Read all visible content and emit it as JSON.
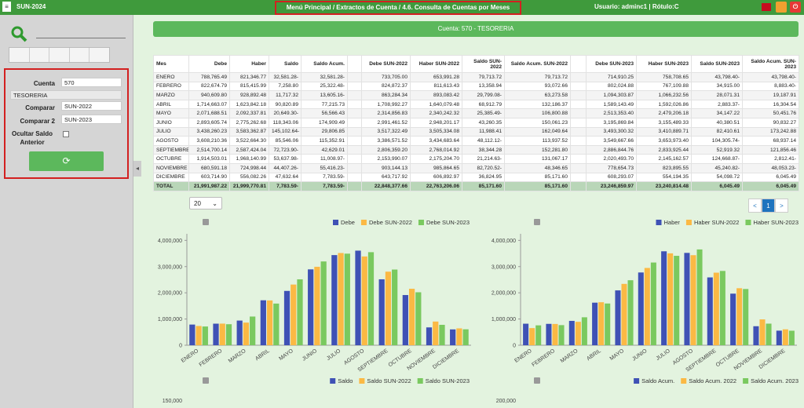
{
  "header": {
    "app": "SUN-2024",
    "breadcrumbs": [
      "Menú Principal",
      "Extractos de Cuenta",
      "4.6. Consulta de Cuentas por Meses"
    ],
    "user": "Usuario: adminc1 | Rótulo:C"
  },
  "sidebar": {
    "cuenta_label": "Cuenta",
    "cuenta": "570",
    "cuenta_name": "TESORERIA",
    "comparar_label": "Comparar",
    "comparar": "SUN-2022",
    "comparar2_label": "Comparar 2",
    "comparar2": "SUN-2023",
    "ocultar_label": "Ocultar Saldo Anterior"
  },
  "banner": "Cuenta: 570 - TESORERIA",
  "table": {
    "columns": [
      "Mes",
      "Debe",
      "Haber",
      "Saldo",
      "Saldo Acum.",
      "Debe SUN-2022",
      "Haber SUN-2022",
      "Saldo SUN-2022",
      "Saldo Acum. SUN-2022",
      "Debe SUN-2023",
      "Haber SUN-2023",
      "Saldo SUN-2023",
      "Saldo Acum. SUN-2023"
    ],
    "rows": [
      [
        "ENERO",
        "788,765.49",
        "821,346.77",
        "32,581.28-",
        "32,581.28-",
        "733,705.00",
        "653,991.28",
        "79,713.72",
        "79,713.72",
        "714,910.25",
        "758,708.65",
        "43,798.40-",
        "43,798.40-"
      ],
      [
        "FEBRERO",
        "822,674.79",
        "815,415.99",
        "7,258.80",
        "25,322.48-",
        "824,872.37",
        "811,613.43",
        "13,358.94",
        "93,072.66",
        "802,024.88",
        "767,109.88",
        "34,915.00",
        "8,883.40-"
      ],
      [
        "MARZO",
        "940,609.80",
        "928,892.48",
        "11,717.32",
        "13,605.16-",
        "863,284.34",
        "893,083.42",
        "29,799.08-",
        "63,273.58",
        "1,094,303.87",
        "1,066,232.56",
        "28,071.31",
        "19,187.91"
      ],
      [
        "ABRIL",
        "1,714,663.07",
        "1,623,842.18",
        "90,820.89",
        "77,215.73",
        "1,708,992.27",
        "1,640,079.48",
        "68,912.79",
        "132,186.37",
        "1,589,143.49",
        "1,592,026.86",
        "2,883.37-",
        "16,304.54"
      ],
      [
        "MAYO",
        "2,071,688.51",
        "2,092,337.81",
        "20,649.30-",
        "56,566.43",
        "2,314,856.83",
        "2,340,242.32",
        "25,385.49-",
        "106,800.88",
        "2,513,353.40",
        "2,479,206.18",
        "34,147.22",
        "50,451.76"
      ],
      [
        "JUNIO",
        "2,893,605.74",
        "2,775,262.68",
        "118,343.06",
        "174,909.49",
        "2,991,461.52",
        "2,948,201.17",
        "43,260.35",
        "150,061.23",
        "3,195,869.84",
        "3,155,489.33",
        "40,380.51",
        "90,832.27"
      ],
      [
        "JULIO",
        "3,438,260.23",
        "3,583,362.87",
        "145,102.64-",
        "29,806.85",
        "3,517,322.49",
        "3,505,334.08",
        "11,988.41",
        "162,049.64",
        "3,493,300.32",
        "3,410,889.71",
        "82,410.61",
        "173,242.88"
      ],
      [
        "AGOSTO",
        "3,608,210.36",
        "3,522,664.30",
        "85,546.06",
        "115,352.91",
        "3,386,571.52",
        "3,434,683.64",
        "48,112.12-",
        "113,937.52",
        "3,549,667.66",
        "3,653,973.40",
        "104,305.74-",
        "68,937.14"
      ],
      [
        "SEPTIEMBRE",
        "2,514,700.14",
        "2,587,424.04",
        "72,723.90-",
        "42,629.01",
        "2,806,359.20",
        "2,768,014.92",
        "38,344.28",
        "152,281.80",
        "2,886,844.76",
        "2,833,925.44",
        "52,919.32",
        "121,856.46"
      ],
      [
        "OCTUBRE",
        "1,914,503.01",
        "1,968,140.99",
        "53,637.98-",
        "11,008.97-",
        "2,153,990.07",
        "2,175,204.70",
        "21,214.63-",
        "131,067.17",
        "2,020,493.70",
        "2,145,162.57",
        "124,668.87-",
        "2,812.41-"
      ],
      [
        "NOVIEMBRE",
        "680,591.18",
        "724,998.44",
        "44,407.26-",
        "55,416.23-",
        "903,144.13",
        "985,864.65",
        "82,720.52-",
        "48,346.65",
        "778,654.73",
        "823,895.55",
        "45,240.82-",
        "48,053.23-"
      ],
      [
        "DICIEMBRE",
        "603,714.90",
        "556,082.26",
        "47,632.64",
        "7,783.59-",
        "643,717.92",
        "606,892.97",
        "36,824.95",
        "85,171.60",
        "608,293.07",
        "554,194.35",
        "54,098.72",
        "6,045.49"
      ],
      [
        "TOTAL",
        "21,991,987.22",
        "21,999,770.81",
        "7,783.59-",
        "7,783.59-",
        "22,848,377.66",
        "22,763,206.06",
        "85,171.60",
        "85,171.60",
        "23,246,859.97",
        "23,240,814.48",
        "6,045.49",
        "6,045.49"
      ]
    ]
  },
  "page_size": "20",
  "pagination": [
    "<",
    "1",
    ">"
  ],
  "chart_data": [
    {
      "type": "bar",
      "categories": [
        "ENERO",
        "FEBRERO",
        "MARZO",
        "ABRIL",
        "MAYO",
        "JUNIO",
        "JULIO",
        "AGOSTO",
        "SEPTIEMBRE",
        "OCTUBRE",
        "NOVIEMBRE",
        "DICIEMBRE"
      ],
      "series": [
        {
          "name": "Debe",
          "color": "#3f51b5",
          "values": [
            788765.49,
            822674.79,
            940609.8,
            1714663.07,
            2071688.51,
            2893605.74,
            3438260.23,
            3608210.36,
            2514700.14,
            1914503.01,
            680591.18,
            603714.9
          ]
        },
        {
          "name": "Debe SUN-2022",
          "color": "#fbb944",
          "values": [
            733705.0,
            824872.37,
            863284.34,
            1708992.27,
            2314856.83,
            2991461.52,
            3517322.49,
            3386571.52,
            2806359.2,
            2153990.07,
            903144.13,
            643717.92
          ]
        },
        {
          "name": "Debe SUN-2023",
          "color": "#7ac95f",
          "values": [
            714910.25,
            802024.88,
            1094303.87,
            1589143.49,
            2513353.4,
            3195869.84,
            3493300.32,
            3549667.66,
            2886844.76,
            2020493.7,
            778654.73,
            608293.07
          ]
        }
      ],
      "ylim": [
        0,
        4250000
      ],
      "yticks": [
        0,
        {
          "value": 1000000,
          "label": "1,000,000"
        },
        {
          "value": 2000000,
          "label": "2,000,000"
        },
        {
          "value": 3000000,
          "label": "3,000,000"
        },
        {
          "value": 4000000,
          "label": "4,000,000"
        }
      ],
      "grid": false
    },
    {
      "type": "bar",
      "categories": [
        "ENERO",
        "FEBRERO",
        "MARZO",
        "ABRIL",
        "MAYO",
        "JUNIO",
        "JULIO",
        "AGOSTO",
        "SEPTIEMBRE",
        "OCTUBRE",
        "NOVIEMBRE",
        "DICIEMBRE"
      ],
      "series": [
        {
          "name": "Haber",
          "color": "#3f51b5",
          "values": [
            821346.77,
            815415.99,
            928892.48,
            1623842.18,
            2092337.81,
            2775262.68,
            3583362.87,
            3522664.3,
            2587424.04,
            1968140.99,
            724998.44,
            556082.26
          ]
        },
        {
          "name": "Haber SUN-2022",
          "color": "#fbb944",
          "values": [
            653991.28,
            811613.43,
            893083.42,
            1640079.48,
            2340242.32,
            2948201.17,
            3505334.08,
            3434683.64,
            2768014.92,
            2175204.7,
            985864.65,
            606892.97
          ]
        },
        {
          "name": "Haber SUN-2023",
          "color": "#7ac95f",
          "values": [
            758708.65,
            767109.88,
            1066232.56,
            1592026.86,
            2479206.18,
            3155489.33,
            3410889.71,
            3653973.4,
            2833925.44,
            2145162.57,
            823895.55,
            554194.35
          ]
        }
      ],
      "ylim": [
        0,
        4250000
      ],
      "yticks": [
        0,
        {
          "value": 1000000,
          "label": "1,000,000"
        },
        {
          "value": 2000000,
          "label": "2,000,000"
        },
        {
          "value": 3000000,
          "label": "3,000,000"
        },
        {
          "value": 4000000,
          "label": "4,000,000"
        }
      ],
      "grid": false
    },
    {
      "type": "bar",
      "series": [
        {
          "name": "Saldo",
          "color": "#3f51b5"
        },
        {
          "name": "Saldo SUN-2022",
          "color": "#fbb944"
        },
        {
          "name": "Saldo SUN-2023",
          "color": "#7ac95f"
        }
      ],
      "yticks": [
        {
          "value": 150000,
          "label": "150,000"
        }
      ]
    },
    {
      "type": "bar",
      "series": [
        {
          "name": "Saldo Acum.",
          "color": "#3f51b5"
        },
        {
          "name": "Saldo Acum. 2022",
          "color": "#fbb944"
        },
        {
          "name": "Saldo Acum. 2023",
          "color": "#7ac95f"
        }
      ],
      "yticks": [
        {
          "value": 200000,
          "label": "200,000"
        }
      ]
    }
  ]
}
